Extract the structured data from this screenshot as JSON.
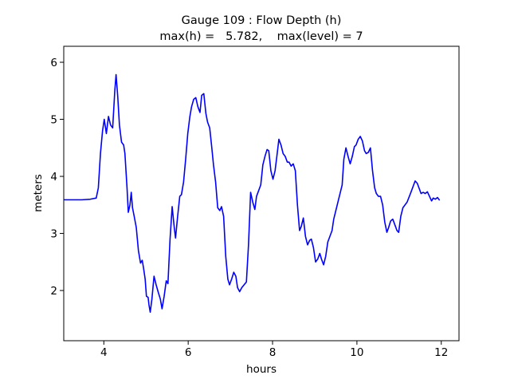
{
  "chart_data": {
    "type": "line",
    "title": [
      "Gauge 109 : Flow Depth (h)",
      "max(h) =   5.782,    max(level) = 7"
    ],
    "xlabel": "hours",
    "ylabel": "meters",
    "xlim": [
      3.05,
      12.42
    ],
    "ylim": [
      1.12,
      6.28
    ],
    "xticks": [
      4,
      6,
      8,
      10,
      12
    ],
    "yticks": [
      2,
      3,
      4,
      5,
      6
    ],
    "grid": false,
    "x": [
      3.05,
      3.48,
      3.68,
      3.82,
      3.87,
      3.92,
      3.97,
      4.01,
      4.06,
      4.11,
      4.16,
      4.21,
      4.26,
      4.29,
      4.33,
      4.37,
      4.42,
      4.47,
      4.5,
      4.55,
      4.58,
      4.62,
      4.65,
      4.68,
      4.72,
      4.77,
      4.82,
      4.87,
      4.91,
      4.94,
      4.98,
      5.01,
      5.05,
      5.07,
      5.1,
      5.14,
      5.19,
      5.24,
      5.29,
      5.34,
      5.38,
      5.43,
      5.48,
      5.52,
      5.57,
      5.62,
      5.67,
      5.7,
      5.75,
      5.8,
      5.84,
      5.89,
      5.94,
      5.99,
      6.04,
      6.08,
      6.13,
      6.18,
      6.23,
      6.28,
      6.32,
      6.37,
      6.42,
      6.46,
      6.51,
      6.56,
      6.6,
      6.65,
      6.7,
      6.75,
      6.79,
      6.84,
      6.89,
      6.94,
      6.98,
      7.03,
      7.08,
      7.13,
      7.17,
      7.22,
      7.27,
      7.38,
      7.43,
      7.48,
      7.53,
      7.58,
      7.62,
      7.67,
      7.72,
      7.77,
      7.82,
      7.87,
      7.91,
      7.96,
      8.01,
      8.06,
      8.11,
      8.15,
      8.2,
      8.25,
      8.3,
      8.35,
      8.39,
      8.44,
      8.49,
      8.54,
      8.59,
      8.64,
      8.68,
      8.73,
      8.78,
      8.83,
      8.88,
      8.92,
      8.97,
      9.02,
      9.07,
      9.12,
      9.16,
      9.21,
      9.26,
      9.31,
      9.36,
      9.41,
      9.45,
      9.55,
      9.65,
      9.69,
      9.74,
      9.79,
      9.84,
      9.89,
      9.94,
      9.98,
      10.03,
      10.08,
      10.13,
      10.18,
      10.22,
      10.27,
      10.32,
      10.37,
      10.42,
      10.46,
      10.51,
      10.56,
      10.61,
      10.66,
      10.71,
      10.75,
      10.8,
      10.85,
      10.9,
      10.95,
      10.99,
      11.04,
      11.09,
      11.19,
      11.28,
      11.38,
      11.43,
      11.48,
      11.52,
      11.57,
      11.62,
      11.67,
      11.72,
      11.77,
      11.81,
      11.86,
      11.91,
      11.96
    ],
    "series": [
      {
        "color": "#0000ff",
        "values": [
          3.59,
          3.59,
          3.6,
          3.62,
          3.8,
          4.4,
          4.8,
          5.0,
          4.75,
          5.05,
          4.9,
          4.85,
          5.5,
          5.782,
          5.4,
          4.9,
          4.6,
          4.55,
          4.4,
          3.8,
          3.37,
          3.5,
          3.72,
          3.45,
          3.3,
          3.1,
          2.7,
          2.48,
          2.53,
          2.4,
          2.2,
          1.9,
          1.88,
          1.75,
          1.62,
          1.85,
          2.25,
          2.1,
          1.97,
          1.85,
          1.68,
          1.9,
          2.17,
          2.12,
          2.9,
          3.47,
          3.1,
          2.92,
          3.3,
          3.65,
          3.68,
          3.9,
          4.3,
          4.75,
          5.05,
          5.22,
          5.35,
          5.38,
          5.22,
          5.12,
          5.42,
          5.45,
          5.1,
          4.95,
          4.85,
          4.5,
          4.2,
          3.9,
          3.45,
          3.4,
          3.47,
          3.3,
          2.6,
          2.2,
          2.1,
          2.2,
          2.32,
          2.25,
          2.05,
          1.98,
          2.05,
          2.15,
          2.8,
          3.72,
          3.55,
          3.42,
          3.65,
          3.75,
          3.85,
          4.2,
          4.35,
          4.47,
          4.45,
          4.1,
          3.95,
          4.1,
          4.4,
          4.65,
          4.55,
          4.4,
          4.35,
          4.25,
          4.25,
          4.18,
          4.22,
          4.1,
          3.5,
          3.05,
          3.12,
          3.27,
          2.95,
          2.8,
          2.88,
          2.9,
          2.75,
          2.5,
          2.55,
          2.65,
          2.55,
          2.45,
          2.6,
          2.85,
          2.95,
          3.05,
          3.25,
          3.55,
          3.85,
          4.3,
          4.5,
          4.35,
          4.22,
          4.35,
          4.52,
          4.55,
          4.65,
          4.7,
          4.62,
          4.45,
          4.4,
          4.42,
          4.5,
          4.1,
          3.8,
          3.7,
          3.65,
          3.65,
          3.5,
          3.2,
          3.02,
          3.1,
          3.22,
          3.25,
          3.15,
          3.05,
          3.02,
          3.3,
          3.45,
          3.55,
          3.72,
          3.92,
          3.88,
          3.78,
          3.7,
          3.72,
          3.7,
          3.73,
          3.65,
          3.57,
          3.62,
          3.6,
          3.63,
          3.58
        ]
      }
    ]
  }
}
